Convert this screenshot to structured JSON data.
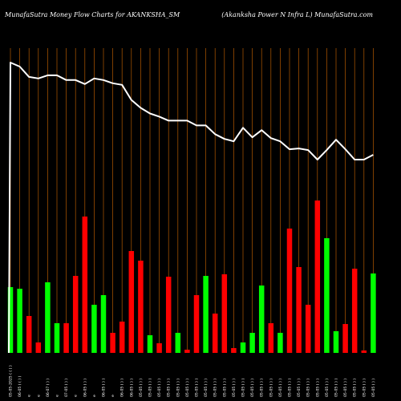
{
  "header": {
    "left_title": "MunafaSutra  Money Flow  Charts for AKANKSHA_SM",
    "right_title": "(Akanksha  Power N  Infra  L) MunafaSutra.com"
  },
  "colors": {
    "background": "#000000",
    "up": "#00ff00",
    "down": "#ff0000",
    "price_line": "#ffffff",
    "grid": "#b35900"
  },
  "chart_data": {
    "type": "bar",
    "title": "MunafaSutra  Money Flow  Charts for AKANKSHA_SM",
    "subtitle": "(Akanksha  Power N  Infra  L) MunafaSutra.com",
    "categories": [
      "05-05-2025 ( ( ) )",
      "06-05 ( ( ) )",
      "e",
      "e",
      "06-07 ( ) )",
      "e",
      "07-05 ( ) )",
      "e",
      "06-05 ( ) )",
      "e",
      "06-05 ( ) )",
      "e",
      "06-05 ( ) )",
      "06-05 ( ) )",
      "05-05 ( ) )",
      "05-05 ( ) )",
      "05-05 ( ) )",
      "05-05 ( ) )",
      "05-05 ( ) )",
      "05-05 ( ) )",
      "05-05 ( ) )",
      "05-05 ( ) )",
      "05-05 ( ) )",
      "05-05 ( ) )",
      "05-05 ( ) )",
      "05-05 ( ) )",
      "05-05 ( ) )",
      "05-05 ( ) )",
      "05-05 ( ) )",
      "05-05 ( ) )",
      "05-05 ( ) )",
      "05-05 ( ) )",
      "05-05 ( ) )",
      "05-05 ( ) )",
      "05-05 ( ) )",
      "05-05 ( ) )",
      "05-05 ( ) )",
      "05-05 ( ) )",
      "05-05 ( ) )",
      "05-05 ( ) )"
    ],
    "money_flow": [
      {
        "value": 82,
        "direction": "up"
      },
      {
        "value": 80,
        "direction": "up"
      },
      {
        "value": 46,
        "direction": "down"
      },
      {
        "value": 13,
        "direction": "down"
      },
      {
        "value": 88,
        "direction": "up"
      },
      {
        "value": 37,
        "direction": "up"
      },
      {
        "value": 37,
        "direction": "down"
      },
      {
        "value": 96,
        "direction": "down"
      },
      {
        "value": 170,
        "direction": "down"
      },
      {
        "value": 60,
        "direction": "up"
      },
      {
        "value": 72,
        "direction": "up"
      },
      {
        "value": 25,
        "direction": "down"
      },
      {
        "value": 39,
        "direction": "down"
      },
      {
        "value": 127,
        "direction": "down"
      },
      {
        "value": 115,
        "direction": "down"
      },
      {
        "value": 22,
        "direction": "up"
      },
      {
        "value": 12,
        "direction": "down"
      },
      {
        "value": 95,
        "direction": "down"
      },
      {
        "value": 25,
        "direction": "up"
      },
      {
        "value": 4,
        "direction": "down"
      },
      {
        "value": 72,
        "direction": "down"
      },
      {
        "value": 96,
        "direction": "up"
      },
      {
        "value": 49,
        "direction": "down"
      },
      {
        "value": 98,
        "direction": "down"
      },
      {
        "value": 6,
        "direction": "down"
      },
      {
        "value": 13,
        "direction": "up"
      },
      {
        "value": 25,
        "direction": "up"
      },
      {
        "value": 84,
        "direction": "up"
      },
      {
        "value": 37,
        "direction": "down"
      },
      {
        "value": 25,
        "direction": "up"
      },
      {
        "value": 155,
        "direction": "down"
      },
      {
        "value": 107,
        "direction": "down"
      },
      {
        "value": 60,
        "direction": "down"
      },
      {
        "value": 190,
        "direction": "down"
      },
      {
        "value": 143,
        "direction": "up"
      },
      {
        "value": 27,
        "direction": "up"
      },
      {
        "value": 36,
        "direction": "down"
      },
      {
        "value": 105,
        "direction": "down"
      },
      {
        "value": 3,
        "direction": "down"
      },
      {
        "value": 99,
        "direction": "up"
      }
    ],
    "price": [
      365,
      360,
      347,
      345,
      349,
      349,
      343,
      343,
      338,
      345,
      343,
      339,
      337,
      318,
      308,
      301,
      297,
      292,
      292,
      292,
      286,
      286,
      275,
      269,
      266,
      283,
      271,
      280,
      270,
      266,
      256,
      257,
      255,
      243,
      255,
      268,
      256,
      243,
      243,
      249
    ],
    "grid": true,
    "legend": ""
  }
}
